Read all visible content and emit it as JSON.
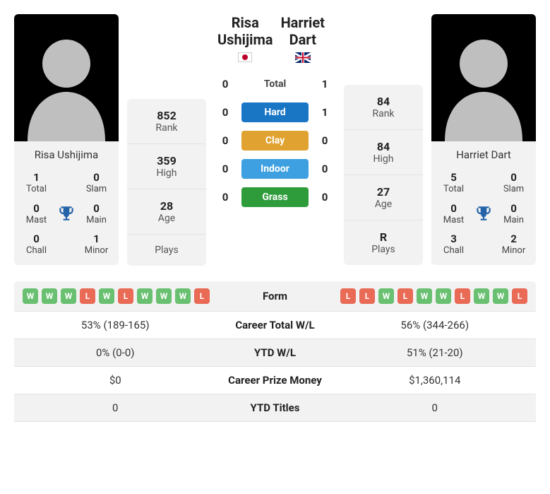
{
  "colors": {
    "card_bg": "#f2f2f2",
    "border": "#e3e3e3",
    "pill_hard": "#1976c5",
    "pill_clay": "#e0a230",
    "pill_indoor": "#3ea0e0",
    "pill_grass": "#2e9c3a",
    "chip_win": "#69c070",
    "chip_loss": "#e96a55",
    "trophy": "#2563a8"
  },
  "players": {
    "left": {
      "name": "Risa Ushijima",
      "country": "JP",
      "titles": {
        "total": "1",
        "slam": "0",
        "mast": "0",
        "main": "0",
        "chall": "0",
        "minor": "1"
      },
      "stats": {
        "rank": "852",
        "high": "359",
        "age": "28",
        "plays": ""
      }
    },
    "right": {
      "name": "Harriet Dart",
      "country": "GB",
      "titles": {
        "total": "5",
        "slam": "0",
        "mast": "0",
        "main": "0",
        "chall": "3",
        "minor": "2"
      },
      "stats": {
        "rank": "84",
        "high": "84",
        "age": "27",
        "plays": "R"
      }
    }
  },
  "labels": {
    "rank": "Rank",
    "high": "High",
    "age": "Age",
    "plays": "Plays",
    "total": "Total",
    "slam": "Slam",
    "mast": "Mast",
    "main": "Main",
    "chall": "Chall",
    "minor": "Minor"
  },
  "h2h": {
    "rows": [
      {
        "label": "Total",
        "type": "plain",
        "left": "0",
        "right": "1"
      },
      {
        "label": "Hard",
        "type": "hard",
        "left": "0",
        "right": "1"
      },
      {
        "label": "Clay",
        "type": "clay",
        "left": "0",
        "right": "0"
      },
      {
        "label": "Indoor",
        "type": "indoor",
        "left": "0",
        "right": "0"
      },
      {
        "label": "Grass",
        "type": "grass",
        "left": "0",
        "right": "0"
      }
    ]
  },
  "form": {
    "left": [
      "W",
      "W",
      "W",
      "L",
      "W",
      "L",
      "W",
      "W",
      "W",
      "L"
    ],
    "right": [
      "L",
      "L",
      "W",
      "L",
      "W",
      "W",
      "L",
      "W",
      "W",
      "L"
    ]
  },
  "table": {
    "rows": [
      {
        "label": "Form",
        "kind": "form"
      },
      {
        "label": "Career Total W/L",
        "left": "53% (189-165)",
        "right": "56% (344-266)"
      },
      {
        "label": "YTD W/L",
        "left": "0% (0-0)",
        "right": "51% (21-20)"
      },
      {
        "label": "Career Prize Money",
        "left": "$0",
        "right": "$1,360,114"
      },
      {
        "label": "YTD Titles",
        "left": "0",
        "right": "0"
      }
    ]
  }
}
